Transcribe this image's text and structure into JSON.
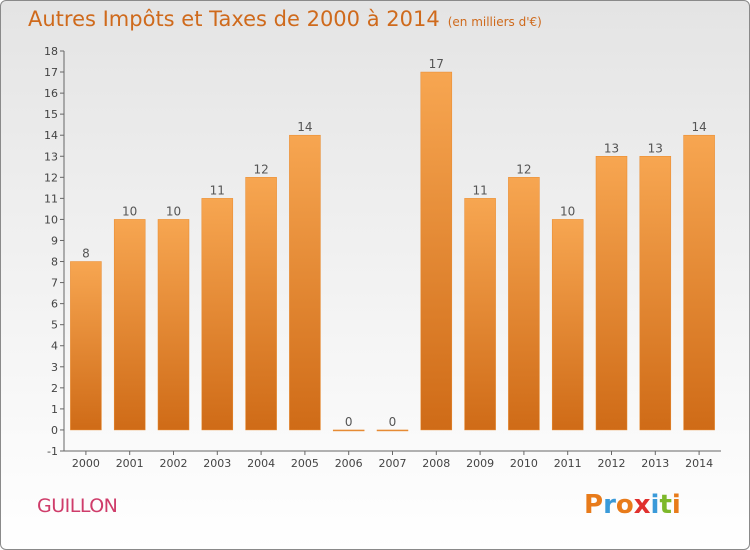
{
  "chart_data": {
    "type": "bar",
    "title": "Autres Impôts et Taxes de 2000 à 2014",
    "subtitle": "(en milliers d'€)",
    "categories": [
      "2000",
      "2001",
      "2002",
      "2003",
      "2004",
      "2005",
      "2006",
      "2007",
      "2008",
      "2009",
      "2010",
      "2011",
      "2012",
      "2013",
      "2014"
    ],
    "values": [
      8,
      10,
      10,
      11,
      12,
      14,
      0,
      0,
      17,
      11,
      12,
      10,
      13,
      13,
      14
    ],
    "ylim": [
      -1,
      18
    ],
    "yticks": [
      "-1",
      "0",
      "1",
      "2",
      "3",
      "4",
      "5",
      "6",
      "7",
      "8",
      "9",
      "10",
      "11",
      "12",
      "13",
      "14",
      "15",
      "16",
      "17",
      "18"
    ],
    "grid": false,
    "bar_color": "#f39a3a"
  },
  "place_name": "GUILLON",
  "logo": {
    "letters": [
      "P",
      "r",
      "o",
      "x",
      "i",
      "t",
      "i"
    ],
    "colors": [
      "#e87b1a",
      "#3a9ad9",
      "#e87b1a",
      "#e0302e",
      "#3a9ad9",
      "#7db82a",
      "#e87b1a"
    ]
  }
}
